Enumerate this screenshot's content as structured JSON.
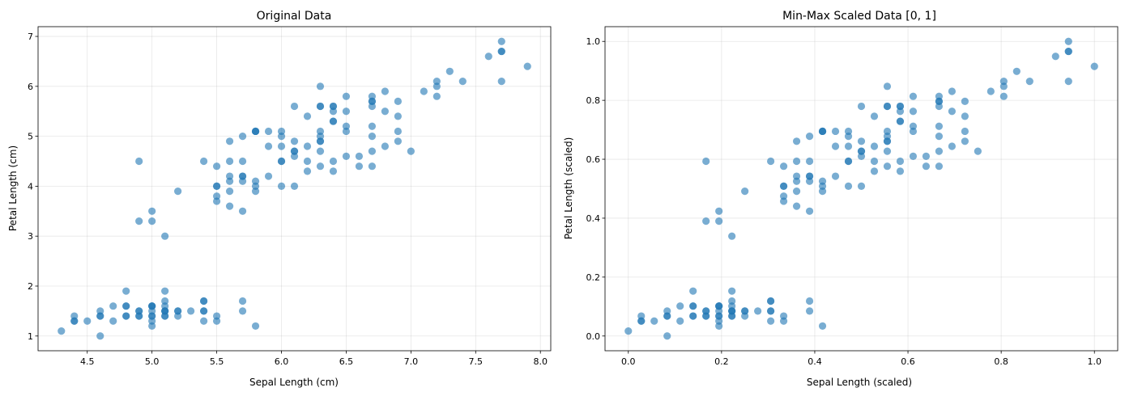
{
  "chart_data": [
    {
      "type": "scatter",
      "title": "Original Data",
      "xlabel": "Sepal Length (cm)",
      "ylabel": "Petal Length (cm)",
      "xlim": [
        4.12,
        8.08
      ],
      "ylim": [
        0.705,
        7.195
      ],
      "xticks": [
        4.5,
        5.0,
        5.5,
        6.0,
        6.5,
        7.0,
        7.5,
        8.0
      ],
      "xtick_labels": [
        "4.5",
        "5.0",
        "5.5",
        "6.0",
        "6.5",
        "7.0",
        "7.5",
        "8.0"
      ],
      "yticks": [
        1,
        2,
        3,
        4,
        5,
        6,
        7
      ],
      "ytick_labels": [
        "1",
        "2",
        "3",
        "4",
        "5",
        "6",
        "7"
      ],
      "grid": true,
      "marker_color": "#1f77b4",
      "points": [
        [
          5.1,
          1.4
        ],
        [
          4.9,
          1.4
        ],
        [
          4.7,
          1.3
        ],
        [
          4.6,
          1.5
        ],
        [
          5.0,
          1.4
        ],
        [
          5.4,
          1.7
        ],
        [
          4.6,
          1.4
        ],
        [
          5.0,
          1.5
        ],
        [
          4.4,
          1.4
        ],
        [
          4.9,
          1.5
        ],
        [
          5.4,
          1.5
        ],
        [
          4.8,
          1.6
        ],
        [
          4.8,
          1.4
        ],
        [
          4.3,
          1.1
        ],
        [
          5.8,
          1.2
        ],
        [
          5.7,
          1.5
        ],
        [
          5.4,
          1.3
        ],
        [
          5.1,
          1.4
        ],
        [
          5.7,
          1.7
        ],
        [
          5.1,
          1.5
        ],
        [
          5.4,
          1.7
        ],
        [
          5.1,
          1.5
        ],
        [
          4.6,
          1.0
        ],
        [
          5.1,
          1.7
        ],
        [
          4.8,
          1.9
        ],
        [
          5.0,
          1.6
        ],
        [
          5.0,
          1.6
        ],
        [
          5.2,
          1.5
        ],
        [
          5.2,
          1.4
        ],
        [
          4.7,
          1.6
        ],
        [
          4.8,
          1.6
        ],
        [
          5.4,
          1.5
        ],
        [
          5.2,
          1.5
        ],
        [
          5.5,
          1.4
        ],
        [
          4.9,
          1.5
        ],
        [
          5.0,
          1.2
        ],
        [
          5.5,
          1.3
        ],
        [
          4.9,
          1.4
        ],
        [
          4.4,
          1.3
        ],
        [
          5.1,
          1.5
        ],
        [
          5.0,
          1.3
        ],
        [
          4.5,
          1.3
        ],
        [
          4.4,
          1.3
        ],
        [
          5.0,
          1.6
        ],
        [
          5.1,
          1.9
        ],
        [
          4.8,
          1.4
        ],
        [
          5.1,
          1.6
        ],
        [
          4.6,
          1.4
        ],
        [
          5.3,
          1.5
        ],
        [
          5.0,
          1.4
        ],
        [
          7.0,
          4.7
        ],
        [
          6.4,
          4.5
        ],
        [
          6.9,
          4.9
        ],
        [
          5.5,
          4.0
        ],
        [
          6.5,
          4.6
        ],
        [
          5.7,
          4.5
        ],
        [
          6.3,
          4.7
        ],
        [
          4.9,
          3.3
        ],
        [
          6.6,
          4.6
        ],
        [
          5.2,
          3.9
        ],
        [
          5.0,
          3.5
        ],
        [
          5.9,
          4.2
        ],
        [
          6.0,
          4.0
        ],
        [
          6.1,
          4.7
        ],
        [
          5.6,
          3.6
        ],
        [
          6.7,
          4.4
        ],
        [
          5.6,
          4.5
        ],
        [
          5.8,
          4.1
        ],
        [
          6.2,
          4.5
        ],
        [
          5.6,
          3.9
        ],
        [
          5.9,
          4.8
        ],
        [
          6.1,
          4.0
        ],
        [
          6.3,
          4.9
        ],
        [
          6.1,
          4.7
        ],
        [
          6.4,
          4.3
        ],
        [
          6.6,
          4.4
        ],
        [
          6.8,
          4.8
        ],
        [
          6.7,
          5.0
        ],
        [
          6.0,
          4.5
        ],
        [
          5.7,
          3.5
        ],
        [
          5.5,
          3.8
        ],
        [
          5.5,
          3.7
        ],
        [
          5.8,
          3.9
        ],
        [
          6.0,
          5.1
        ],
        [
          5.4,
          4.5
        ],
        [
          6.0,
          4.5
        ],
        [
          6.7,
          4.7
        ],
        [
          6.3,
          4.4
        ],
        [
          5.6,
          4.1
        ],
        [
          5.5,
          4.0
        ],
        [
          5.5,
          4.4
        ],
        [
          6.1,
          4.6
        ],
        [
          5.8,
          4.0
        ],
        [
          5.0,
          3.3
        ],
        [
          5.6,
          4.2
        ],
        [
          5.7,
          4.2
        ],
        [
          5.7,
          4.2
        ],
        [
          6.2,
          4.3
        ],
        [
          5.1,
          3.0
        ],
        [
          5.7,
          4.1
        ],
        [
          6.3,
          6.0
        ],
        [
          5.8,
          5.1
        ],
        [
          7.1,
          5.9
        ],
        [
          6.3,
          5.6
        ],
        [
          6.5,
          5.8
        ],
        [
          7.6,
          6.6
        ],
        [
          4.9,
          4.5
        ],
        [
          7.3,
          6.3
        ],
        [
          6.7,
          5.8
        ],
        [
          7.2,
          6.1
        ],
        [
          6.5,
          5.1
        ],
        [
          6.4,
          5.3
        ],
        [
          6.8,
          5.5
        ],
        [
          5.7,
          5.0
        ],
        [
          5.8,
          5.1
        ],
        [
          6.4,
          5.3
        ],
        [
          6.5,
          5.5
        ],
        [
          7.7,
          6.7
        ],
        [
          7.7,
          6.9
        ],
        [
          6.0,
          5.0
        ],
        [
          6.9,
          5.7
        ],
        [
          5.6,
          4.9
        ],
        [
          7.7,
          6.7
        ],
        [
          6.3,
          4.9
        ],
        [
          6.7,
          5.7
        ],
        [
          7.2,
          6.0
        ],
        [
          6.2,
          4.8
        ],
        [
          6.1,
          4.9
        ],
        [
          6.4,
          5.6
        ],
        [
          7.2,
          5.8
        ],
        [
          7.4,
          6.1
        ],
        [
          7.9,
          6.4
        ],
        [
          6.4,
          5.6
        ],
        [
          6.3,
          5.1
        ],
        [
          6.1,
          5.6
        ],
        [
          7.7,
          6.1
        ],
        [
          6.3,
          5.6
        ],
        [
          6.4,
          5.5
        ],
        [
          6.0,
          4.8
        ],
        [
          6.9,
          5.4
        ],
        [
          6.7,
          5.6
        ],
        [
          6.9,
          5.1
        ],
        [
          5.8,
          5.1
        ],
        [
          6.8,
          5.9
        ],
        [
          6.7,
          5.7
        ],
        [
          6.7,
          5.2
        ],
        [
          6.3,
          5.0
        ],
        [
          6.5,
          5.2
        ],
        [
          6.2,
          5.4
        ],
        [
          5.9,
          5.1
        ]
      ]
    },
    {
      "type": "scatter",
      "title": "Min-Max Scaled Data [0, 1]",
      "xlabel": "Sepal Length (scaled)",
      "ylabel": "Petal Length (scaled)",
      "xlim": [
        -0.05,
        1.05
      ],
      "ylim": [
        -0.05,
        1.05
      ],
      "xticks": [
        0.0,
        0.2,
        0.4,
        0.6,
        0.8,
        1.0
      ],
      "xtick_labels": [
        "0.0",
        "0.2",
        "0.4",
        "0.6",
        "0.8",
        "1.0"
      ],
      "yticks": [
        0.0,
        0.2,
        0.4,
        0.6,
        0.8,
        1.0
      ],
      "ytick_labels": [
        "0.0",
        "0.2",
        "0.4",
        "0.6",
        "0.8",
        "1.0"
      ],
      "grid": true,
      "marker_color": "#1f77b4",
      "scaling": {
        "x_min": 4.3,
        "x_max": 7.9,
        "y_min": 1.0,
        "y_max": 6.9
      }
    }
  ]
}
